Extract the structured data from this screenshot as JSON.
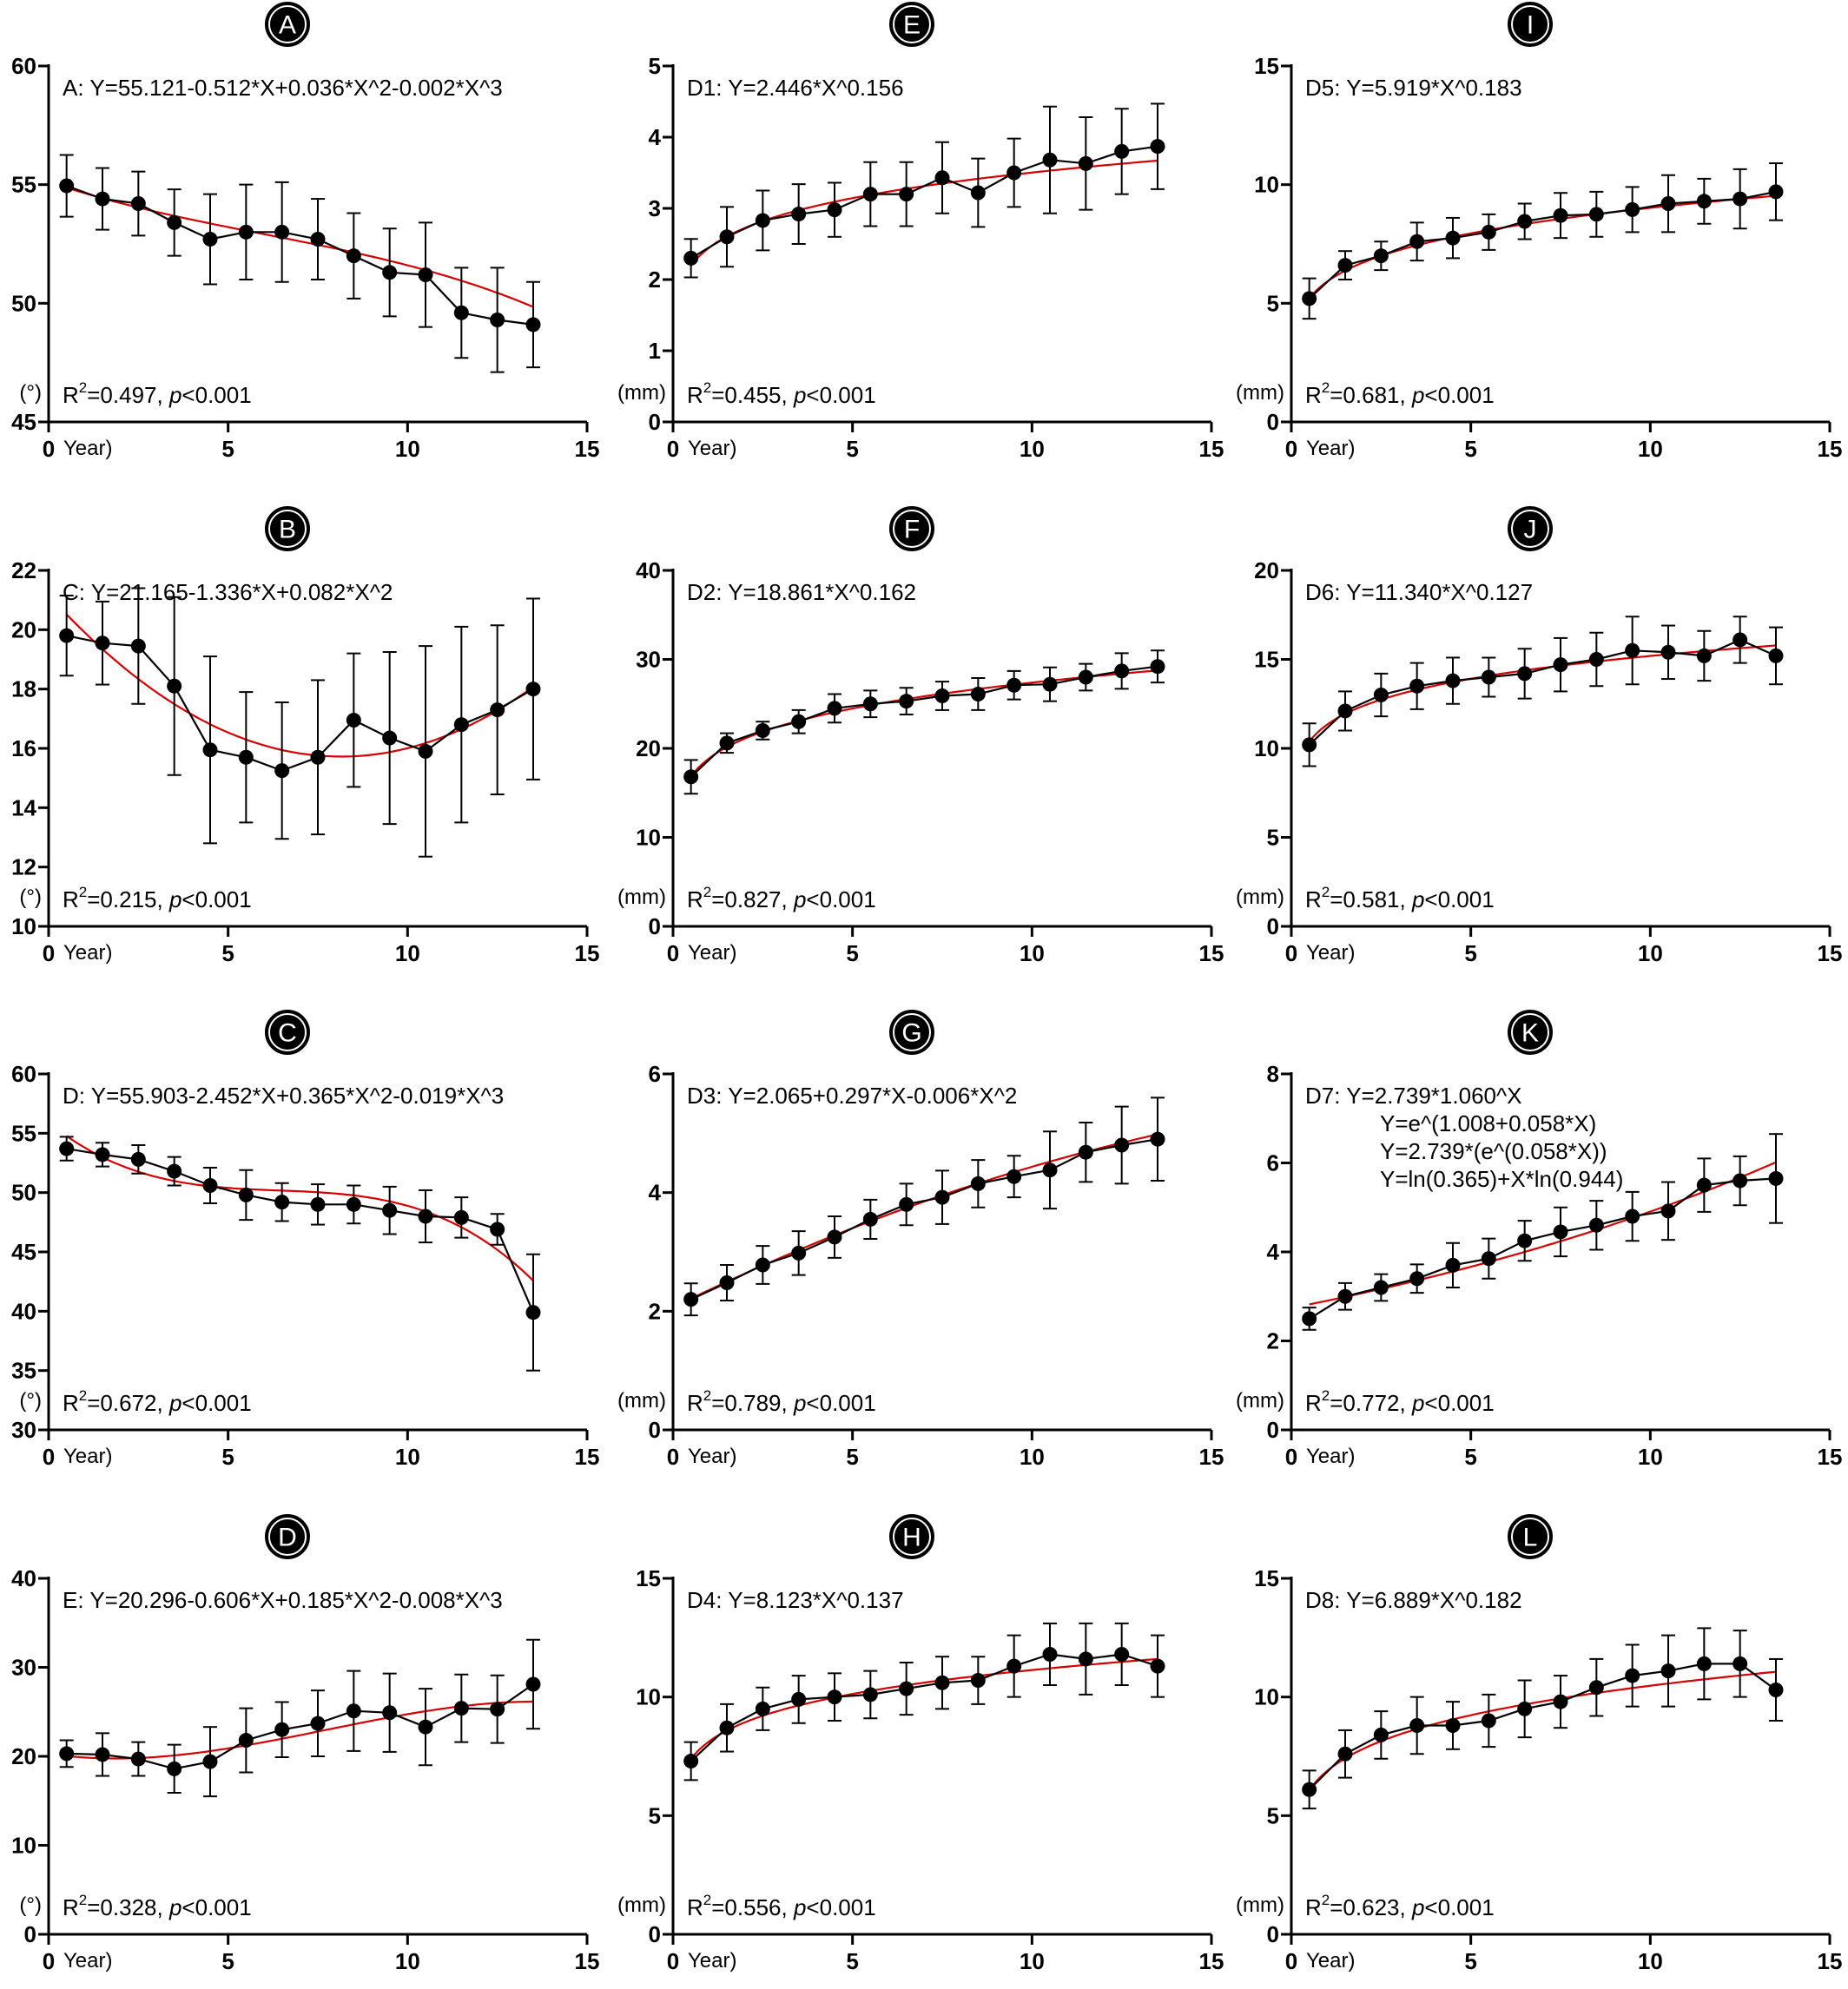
{
  "chart_data": [
    {
      "type": "line",
      "panel_label": "A",
      "equation": "A:  Y=55.121-0.512*X+0.036*X^2-0.002*X^3",
      "stats": {
        "r2": "=0.497, ",
        "p": "<0.001"
      },
      "unit": "(°)",
      "xlabel": "Year)",
      "xlim": [
        0,
        15
      ],
      "xticks": [
        0,
        5,
        10,
        15
      ],
      "ylim": [
        45,
        60
      ],
      "yticks": [
        45,
        50,
        55,
        60
      ],
      "fit": {
        "kind": "poly",
        "coef": [
          55.121,
          -0.512,
          0.036,
          -0.002
        ]
      },
      "x": [
        0.5,
        1.5,
        2.5,
        3.5,
        4.5,
        5.5,
        6.5,
        7.5,
        8.5,
        9.5,
        10.5,
        11.5,
        12.5,
        13.5
      ],
      "y": [
        54.95,
        54.4,
        54.2,
        53.4,
        52.7,
        53.0,
        53.0,
        52.7,
        52.0,
        51.3,
        51.2,
        49.6,
        49.3,
        49.1
      ],
      "err": [
        1.3,
        1.3,
        1.35,
        1.4,
        1.9,
        2.0,
        2.1,
        1.7,
        1.8,
        1.85,
        2.2,
        1.9,
        2.2,
        1.8
      ]
    },
    {
      "type": "line",
      "panel_label": "E",
      "equation": "D1:  Y=2.446*X^0.156",
      "stats": {
        "r2": "=0.455, ",
        "p": "<0.001"
      },
      "unit": "(mm)",
      "xlabel": "Year)",
      "xlim": [
        0,
        15
      ],
      "xticks": [
        0,
        5,
        10,
        15
      ],
      "ylim": [
        0,
        5
      ],
      "yticks": [
        0,
        1,
        2,
        3,
        4,
        5
      ],
      "fit": {
        "kind": "power",
        "a": 2.446,
        "b": 0.156
      },
      "x": [
        0.5,
        1.5,
        2.5,
        3.5,
        4.5,
        5.5,
        6.5,
        7.5,
        8.5,
        9.5,
        10.5,
        11.5,
        12.5,
        13.5
      ],
      "y": [
        2.3,
        2.6,
        2.83,
        2.92,
        2.98,
        3.2,
        3.2,
        3.43,
        3.22,
        3.5,
        3.68,
        3.63,
        3.8,
        3.87
      ],
      "err": [
        0.27,
        0.42,
        0.42,
        0.42,
        0.38,
        0.45,
        0.45,
        0.5,
        0.48,
        0.48,
        0.75,
        0.65,
        0.6,
        0.6
      ]
    },
    {
      "type": "line",
      "panel_label": "I",
      "equation": "D5:  Y=5.919*X^0.183",
      "stats": {
        "r2": "=0.681, ",
        "p": "<0.001"
      },
      "unit": "(mm)",
      "xlabel": "Year)",
      "xlim": [
        0,
        15
      ],
      "xticks": [
        0,
        5,
        10,
        15
      ],
      "ylim": [
        0,
        15
      ],
      "yticks": [
        0,
        5,
        10,
        15
      ],
      "fit": {
        "kind": "power",
        "a": 5.919,
        "b": 0.183
      },
      "x": [
        0.5,
        1.5,
        2.5,
        3.5,
        4.5,
        5.5,
        6.5,
        7.5,
        8.5,
        9.5,
        10.5,
        11.5,
        12.5,
        13.5
      ],
      "y": [
        5.2,
        6.6,
        7.0,
        7.6,
        7.75,
        8.0,
        8.45,
        8.7,
        8.75,
        8.95,
        9.2,
        9.3,
        9.4,
        9.7
      ],
      "err": [
        0.85,
        0.6,
        0.6,
        0.8,
        0.85,
        0.75,
        0.75,
        0.95,
        0.95,
        0.95,
        1.2,
        0.95,
        1.25,
        1.2
      ]
    },
    {
      "type": "line",
      "panel_label": "B",
      "equation": "C:  Y=21.165-1.336*X+0.082*X^2",
      "stats": {
        "r2": "=0.215, ",
        "p": "<0.001"
      },
      "unit": "(°)",
      "xlabel": "Year)",
      "xlim": [
        0,
        15
      ],
      "xticks": [
        0,
        5,
        10,
        15
      ],
      "ylim": [
        10,
        22
      ],
      "yticks": [
        10,
        12,
        14,
        16,
        18,
        20,
        22
      ],
      "fit": {
        "kind": "poly",
        "coef": [
          21.165,
          -1.336,
          0.082
        ]
      },
      "x": [
        0.5,
        1.5,
        2.5,
        3.5,
        4.5,
        5.5,
        6.5,
        7.5,
        8.5,
        9.5,
        10.5,
        11.5,
        12.5,
        13.5
      ],
      "y": [
        19.8,
        19.55,
        19.45,
        18.1,
        15.95,
        15.7,
        15.25,
        15.7,
        16.95,
        16.35,
        15.9,
        16.8,
        17.3,
        18.0
      ],
      "err": [
        1.35,
        1.4,
        1.95,
        3.0,
        3.15,
        2.2,
        2.3,
        2.6,
        2.25,
        2.9,
        3.55,
        3.3,
        2.85,
        3.05
      ]
    },
    {
      "type": "line",
      "panel_label": "F",
      "equation": "D2:  Y=18.861*X^0.162",
      "stats": {
        "r2": "=0.827, ",
        "p": "<0.001"
      },
      "unit": "(mm)",
      "xlabel": "Year)",
      "xlim": [
        0,
        15
      ],
      "xticks": [
        0,
        5,
        10,
        15
      ],
      "ylim": [
        0,
        40
      ],
      "yticks": [
        0,
        10,
        20,
        30,
        40
      ],
      "fit": {
        "kind": "power",
        "a": 18.861,
        "b": 0.162
      },
      "x": [
        0.5,
        1.5,
        2.5,
        3.5,
        4.5,
        5.5,
        6.5,
        7.5,
        8.5,
        9.5,
        10.5,
        11.5,
        12.5,
        13.5
      ],
      "y": [
        16.8,
        20.6,
        22.0,
        23.0,
        24.5,
        25.0,
        25.3,
        25.9,
        26.1,
        27.1,
        27.2,
        28.0,
        28.7,
        29.2
      ],
      "err": [
        1.9,
        1.1,
        1.0,
        1.3,
        1.6,
        1.5,
        1.5,
        1.6,
        1.8,
        1.6,
        1.9,
        1.5,
        2.0,
        1.8
      ]
    },
    {
      "type": "line",
      "panel_label": "J",
      "equation": "D6:  Y=11.340*X^0.127",
      "stats": {
        "r2": "=0.581, ",
        "p": "<0.001"
      },
      "unit": "(mm)",
      "xlabel": "Year)",
      "xlim": [
        0,
        15
      ],
      "xticks": [
        0,
        5,
        10,
        15
      ],
      "ylim": [
        0,
        20
      ],
      "yticks": [
        0,
        5,
        10,
        15,
        20
      ],
      "fit": {
        "kind": "power",
        "a": 11.34,
        "b": 0.127
      },
      "x": [
        0.5,
        1.5,
        2.5,
        3.5,
        4.5,
        5.5,
        6.5,
        7.5,
        8.5,
        9.5,
        10.5,
        11.5,
        12.5,
        13.5
      ],
      "y": [
        10.2,
        12.1,
        13.0,
        13.5,
        13.8,
        14.0,
        14.2,
        14.7,
        15.0,
        15.5,
        15.4,
        15.2,
        16.1,
        15.2
      ],
      "err": [
        1.2,
        1.1,
        1.2,
        1.3,
        1.3,
        1.1,
        1.4,
        1.5,
        1.5,
        1.9,
        1.5,
        1.4,
        1.3,
        1.6
      ]
    },
    {
      "type": "line",
      "panel_label": "C",
      "equation": "D:  Y=55.903-2.452*X+0.365*X^2-0.019*X^3",
      "stats": {
        "r2": "=0.672, ",
        "p": "<0.001"
      },
      "unit": "(°)",
      "xlabel": "Year)",
      "xlim": [
        0,
        15
      ],
      "xticks": [
        0,
        5,
        10,
        15
      ],
      "ylim": [
        30,
        60
      ],
      "yticks": [
        30,
        35,
        40,
        45,
        50,
        55,
        60
      ],
      "fit": {
        "kind": "poly",
        "coef": [
          55.903,
          -2.452,
          0.365,
          -0.019
        ]
      },
      "x": [
        0.5,
        1.5,
        2.5,
        3.5,
        4.5,
        5.5,
        6.5,
        7.5,
        8.5,
        9.5,
        10.5,
        11.5,
        12.5,
        13.5
      ],
      "y": [
        53.7,
        53.2,
        52.8,
        51.8,
        50.6,
        49.8,
        49.2,
        49.0,
        49.0,
        48.5,
        48.0,
        47.9,
        46.9,
        39.9
      ],
      "err": [
        1.0,
        1.0,
        1.2,
        1.2,
        1.5,
        2.1,
        1.6,
        1.7,
        1.6,
        2.0,
        2.2,
        1.7,
        1.3,
        4.9
      ]
    },
    {
      "type": "line",
      "panel_label": "G",
      "equation": "D3:  Y=2.065+0.297*X-0.006*X^2",
      "stats": {
        "r2": "=0.789, ",
        "p": "<0.001"
      },
      "unit": "(mm)",
      "xlabel": "Year)",
      "xlim": [
        0,
        15
      ],
      "xticks": [
        0,
        5,
        10,
        15
      ],
      "ylim": [
        0,
        6
      ],
      "yticks": [
        0,
        2,
        4,
        6
      ],
      "fit": {
        "kind": "poly",
        "coef": [
          2.065,
          0.297,
          -0.006
        ]
      },
      "x": [
        0.5,
        1.5,
        2.5,
        3.5,
        4.5,
        5.5,
        6.5,
        7.5,
        8.5,
        9.5,
        10.5,
        11.5,
        12.5,
        13.5
      ],
      "y": [
        2.2,
        2.48,
        2.78,
        2.98,
        3.25,
        3.55,
        3.8,
        3.92,
        4.15,
        4.27,
        4.38,
        4.68,
        4.8,
        4.9
      ],
      "err": [
        0.27,
        0.3,
        0.32,
        0.37,
        0.35,
        0.33,
        0.35,
        0.45,
        0.4,
        0.35,
        0.65,
        0.5,
        0.65,
        0.7
      ]
    },
    {
      "type": "line",
      "panel_label": "K",
      "equation": "D7:  Y=2.739*1.060^X",
      "equation_lines": [
        "Y=e^(1.008+0.058*X)",
        "Y=2.739*(e^(0.058*X))",
        "Y=ln(0.365)+X*ln(0.944)"
      ],
      "stats": {
        "r2": "=0.772, ",
        "p": "<0.001"
      },
      "unit": "(mm)",
      "xlabel": "Year)",
      "xlim": [
        0,
        15
      ],
      "xticks": [
        0,
        5,
        10,
        15
      ],
      "ylim": [
        0,
        8
      ],
      "yticks": [
        0,
        2,
        4,
        6,
        8
      ],
      "fit": {
        "kind": "exp",
        "a": 2.739,
        "b": 1.06
      },
      "x": [
        0.5,
        1.5,
        2.5,
        3.5,
        4.5,
        5.5,
        6.5,
        7.5,
        8.5,
        9.5,
        10.5,
        11.5,
        12.5,
        13.5
      ],
      "y": [
        2.5,
        3.0,
        3.2,
        3.4,
        3.7,
        3.85,
        4.25,
        4.45,
        4.6,
        4.8,
        4.92,
        5.5,
        5.6,
        5.65
      ],
      "err": [
        0.25,
        0.3,
        0.3,
        0.32,
        0.5,
        0.45,
        0.45,
        0.55,
        0.55,
        0.55,
        0.65,
        0.6,
        0.55,
        1.0
      ]
    },
    {
      "type": "line",
      "panel_label": "D",
      "equation": "E:  Y=20.296-0.606*X+0.185*X^2-0.008*X^3",
      "stats": {
        "r2": "=0.328, ",
        "p": "<0.001"
      },
      "unit": "(°)",
      "xlabel": "Year)",
      "xlim": [
        0,
        15
      ],
      "xticks": [
        0,
        5,
        10,
        15
      ],
      "ylim": [
        0,
        40
      ],
      "yticks": [
        0,
        10,
        20,
        30,
        40
      ],
      "fit": {
        "kind": "poly",
        "coef": [
          20.296,
          -0.606,
          0.185,
          -0.008
        ]
      },
      "x": [
        0.5,
        1.5,
        2.5,
        3.5,
        4.5,
        5.5,
        6.5,
        7.5,
        8.5,
        9.5,
        10.5,
        11.5,
        12.5,
        13.5
      ],
      "y": [
        20.3,
        20.2,
        19.7,
        18.6,
        19.4,
        21.8,
        23.0,
        23.7,
        25.1,
        24.9,
        23.3,
        25.4,
        25.3,
        28.1
      ],
      "err": [
        1.5,
        2.4,
        1.9,
        2.7,
        3.9,
        3.6,
        3.1,
        3.7,
        4.5,
        4.4,
        4.3,
        3.8,
        3.8,
        5.0
      ]
    },
    {
      "type": "line",
      "panel_label": "H",
      "equation": "D4:  Y=8.123*X^0.137",
      "stats": {
        "r2": "=0.556, ",
        "p": "<0.001"
      },
      "unit": "(mm)",
      "xlabel": "Year)",
      "xlim": [
        0,
        15
      ],
      "xticks": [
        0,
        5,
        10,
        15
      ],
      "ylim": [
        0,
        15
      ],
      "yticks": [
        0,
        5,
        10,
        15
      ],
      "fit": {
        "kind": "power",
        "a": 8.123,
        "b": 0.137
      },
      "x": [
        0.5,
        1.5,
        2.5,
        3.5,
        4.5,
        5.5,
        6.5,
        7.5,
        8.5,
        9.5,
        10.5,
        11.5,
        12.5,
        13.5
      ],
      "y": [
        7.3,
        8.7,
        9.5,
        9.9,
        10.0,
        10.1,
        10.35,
        10.6,
        10.7,
        11.3,
        11.8,
        11.6,
        11.8,
        11.3
      ],
      "err": [
        0.8,
        1.0,
        0.9,
        1.0,
        1.0,
        1.0,
        1.1,
        1.1,
        1.0,
        1.3,
        1.3,
        1.5,
        1.3,
        1.3
      ]
    },
    {
      "type": "line",
      "panel_label": "L",
      "equation": "D8:  Y=6.889*X^0.182",
      "stats": {
        "r2": "=0.623, ",
        "p": "<0.001"
      },
      "unit": "(mm)",
      "xlabel": "Year)",
      "xlim": [
        0,
        15
      ],
      "xticks": [
        0,
        5,
        10,
        15
      ],
      "ylim": [
        0,
        15
      ],
      "yticks": [
        0,
        5,
        10,
        15
      ],
      "fit": {
        "kind": "power",
        "a": 6.889,
        "b": 0.182
      },
      "x": [
        0.5,
        1.5,
        2.5,
        3.5,
        4.5,
        5.5,
        6.5,
        7.5,
        8.5,
        9.5,
        10.5,
        11.5,
        12.5,
        13.5
      ],
      "y": [
        6.1,
        7.6,
        8.4,
        8.8,
        8.8,
        9.0,
        9.5,
        9.8,
        10.4,
        10.9,
        11.1,
        11.4,
        11.4,
        10.3
      ],
      "err": [
        0.8,
        1.0,
        1.0,
        1.2,
        1.0,
        1.1,
        1.2,
        1.1,
        1.2,
        1.3,
        1.5,
        1.5,
        1.4,
        1.3
      ]
    }
  ]
}
